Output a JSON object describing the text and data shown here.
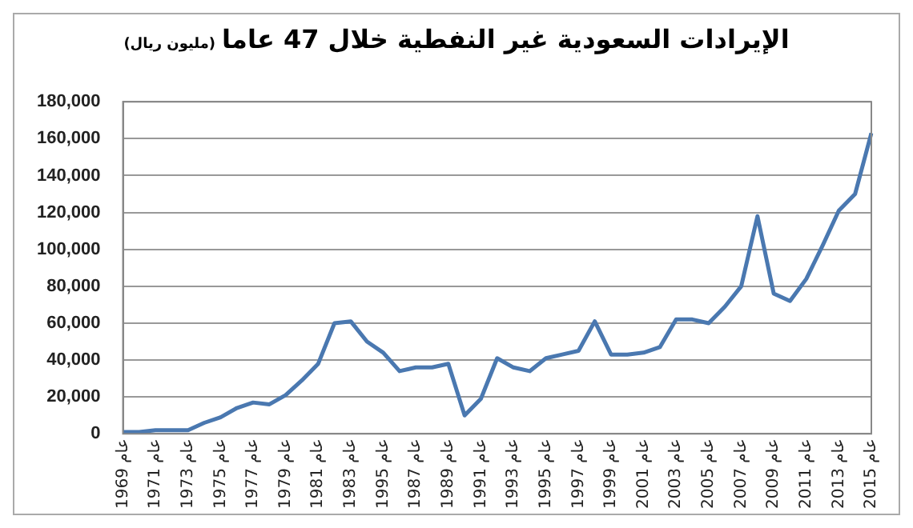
{
  "chart_data": {
    "type": "line",
    "title": "الإيرادات السعودية غير النفطية خلال 47 عاما",
    "subtitle": "(مليون ريال)",
    "categories": [
      "عام 1969",
      null,
      "عام 1971",
      null,
      "عام 1973",
      null,
      "عام 1975",
      null,
      "عام 1977",
      null,
      "عام 1979",
      null,
      "عام 1981",
      null,
      "عام 1983",
      null,
      "عام 1995",
      null,
      "عام 1987",
      null,
      "عام 1989",
      null,
      "عام 1991",
      null,
      "عام 1993",
      null,
      "عام 1995",
      null,
      "عام 1997",
      null,
      "عام 1999",
      null,
      "عام 2001",
      null,
      "عام 2003",
      null,
      "عام 2005",
      null,
      "عام 2007",
      null,
      "عام 2009",
      null,
      "عام 2011",
      null,
      "عام 2013",
      null,
      "عام 2015"
    ],
    "series": [
      {
        "color": "#4a78b0",
        "values": [
          1000,
          1000,
          2000,
          2000,
          2000,
          6000,
          9000,
          14000,
          17000,
          16000,
          21000,
          29000,
          38000,
          60000,
          61000,
          50000,
          44000,
          34000,
          36000,
          36000,
          38000,
          10000,
          19000,
          41000,
          36000,
          34000,
          41000,
          43000,
          45000,
          61000,
          43000,
          43000,
          44000,
          47000,
          62000,
          62000,
          60000,
          69000,
          80000,
          118000,
          76000,
          72000,
          84000,
          102000,
          121000,
          130000,
          163000
        ]
      }
    ],
    "ylim": [
      0,
      180000
    ],
    "yticks": [
      0,
      {
        "value": 20000,
        "label": "20,000"
      },
      {
        "value": 40000,
        "label": "40,000"
      },
      {
        "value": 60000,
        "label": "60,000"
      },
      {
        "value": 80000,
        "label": "80,000"
      },
      {
        "value": 100000,
        "label": "100,000"
      },
      {
        "value": 120000,
        "label": "120,000"
      },
      {
        "value": 140000,
        "label": "140,000"
      },
      {
        "value": 160000,
        "label": "160,000"
      },
      {
        "value": 180000,
        "label": "180,000"
      }
    ],
    "grid": "y",
    "legend": false,
    "marker": "none",
    "line_style": "solid"
  }
}
